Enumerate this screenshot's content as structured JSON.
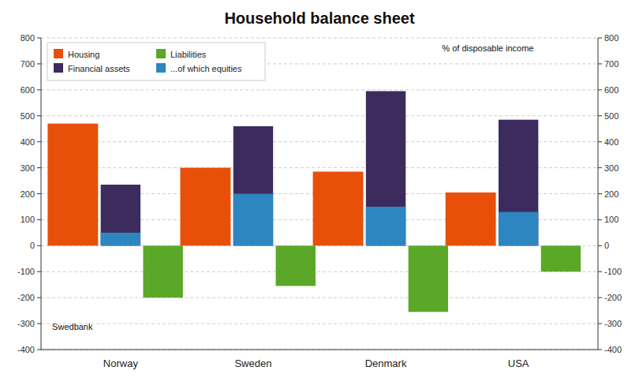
{
  "chart_data": {
    "type": "bar",
    "title": "Household balance sheet",
    "categories": [
      "Norway",
      "Sweden",
      "Denmark",
      "USA"
    ],
    "series": [
      {
        "name": "Housing",
        "color": "#E8500A",
        "values": [
          470,
          300,
          285,
          205
        ]
      },
      {
        "name": "Financial assets",
        "color": "#3D2B5E",
        "values": [
          235,
          460,
          595,
          485
        ]
      },
      {
        "name": "Liabilities",
        "color": "#5BA828",
        "values": [
          -200,
          -155,
          -255,
          -100
        ]
      },
      {
        "name": "...of which equities",
        "color": "#2E86C1",
        "values": [
          50,
          200,
          150,
          130
        ]
      }
    ],
    "ylim": [
      -400,
      800
    ],
    "yticks": [
      -400,
      -300,
      -200,
      -100,
      0,
      100,
      200,
      300,
      400,
      500,
      600,
      700,
      800
    ],
    "y2lim": [
      -400,
      800
    ],
    "y2ticks": [
      -400,
      -300,
      -200,
      -100,
      0,
      100,
      200,
      300,
      400,
      500,
      600,
      700,
      800
    ],
    "grid": true,
    "legend": "upper left",
    "annotations": [
      "% of disposable income",
      "Swedbank"
    ]
  }
}
